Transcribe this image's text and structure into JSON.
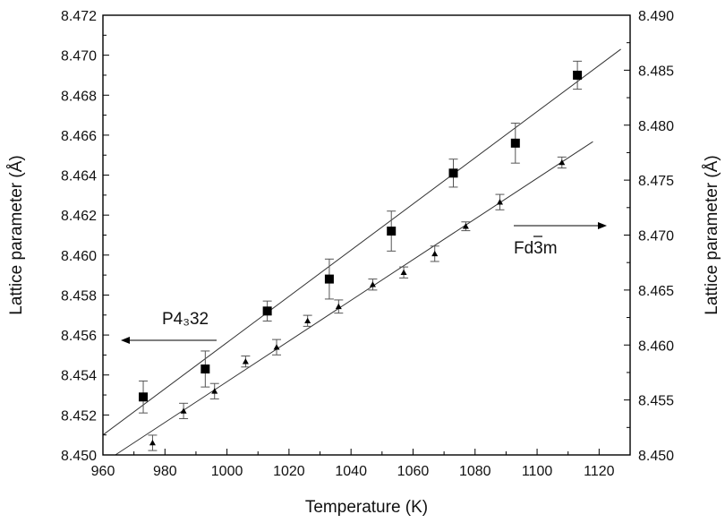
{
  "chart_data": {
    "type": "scatter",
    "title": "",
    "xlabel": "Temperature (K)",
    "ylabel_left": "Lattice parameter (Å)",
    "ylabel_right": "Lattice parameter (Å)",
    "xlim": [
      960,
      1130
    ],
    "xticks": [
      960,
      980,
      1000,
      1020,
      1040,
      1060,
      1080,
      1100,
      1120
    ],
    "y_left_lim": [
      8.45,
      8.472
    ],
    "y_left_ticks": [
      "8.450",
      "8.452",
      "8.454",
      "8.456",
      "8.458",
      "8.460",
      "8.462",
      "8.464",
      "8.466",
      "8.468",
      "8.470",
      "8.472"
    ],
    "y_right_lim": [
      8.45,
      8.49
    ],
    "y_right_ticks": [
      "8.450",
      "8.455",
      "8.460",
      "8.465",
      "8.470",
      "8.475",
      "8.480",
      "8.485",
      "8.490"
    ],
    "grid": false,
    "series": [
      {
        "name": "P4₃32",
        "axis": "left",
        "marker": "square",
        "color": "#000000",
        "x": [
          973,
          993,
          1013,
          1033,
          1053,
          1073,
          1093,
          1113
        ],
        "y": [
          8.4529,
          8.4543,
          8.4572,
          8.4588,
          8.4612,
          8.4641,
          8.4656,
          8.469
        ],
        "err": [
          0.0008,
          0.0009,
          0.0005,
          0.001,
          0.001,
          0.0007,
          0.001,
          0.0007
        ],
        "fit": {
          "x": [
            960,
            1127
          ],
          "y": [
            8.451,
            8.4703
          ]
        }
      },
      {
        "name": "Fd3m",
        "axis": "right",
        "marker": "triangle",
        "color": "#000000",
        "x": [
          976,
          986,
          996,
          1006,
          1016,
          1026,
          1036,
          1047,
          1057,
          1067,
          1077,
          1088,
          1108
        ],
        "y": [
          8.4511,
          8.454,
          8.4558,
          8.4585,
          8.4598,
          8.4622,
          8.4635,
          8.4655,
          8.4666,
          8.4683,
          8.4708,
          8.473,
          8.4766
        ],
        "err": [
          0.0007,
          0.0007,
          0.0007,
          0.0005,
          0.0007,
          0.0005,
          0.0006,
          0.0005,
          0.0005,
          0.0007,
          0.0004,
          0.0007,
          0.0005
        ],
        "fit": {
          "x": [
            964,
            1118
          ],
          "y": [
            8.45,
            8.4785
          ]
        }
      }
    ],
    "annotations": [
      {
        "text": "P4₃32",
        "arrow": "left",
        "target_axis": "left"
      },
      {
        "text": "Fd3m",
        "arrow": "right",
        "target_axis": "right"
      }
    ]
  }
}
